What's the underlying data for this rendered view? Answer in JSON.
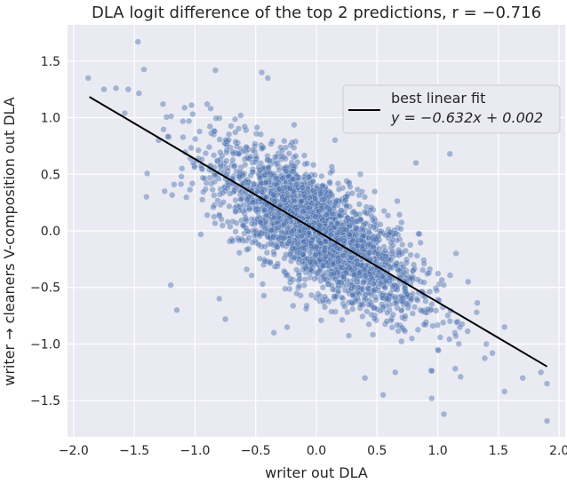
{
  "chart_data": {
    "type": "scatter",
    "title": "DLA logit difference of the top 2 predictions, r = −0.716",
    "xlabel": "writer out DLA",
    "ylabel": "writer → cleaners V-composition out DLA",
    "xlim": [
      -2.05,
      2.05
    ],
    "ylim": [
      -1.82,
      1.82
    ],
    "xticks": [
      -2.0,
      -1.5,
      -1.0,
      -0.5,
      0.0,
      0.5,
      1.0,
      1.5,
      2.0
    ],
    "yticks": [
      -1.5,
      -1.0,
      -0.5,
      0.0,
      0.5,
      1.0,
      1.5
    ],
    "xtick_labels": [
      "−2.0",
      "−1.5",
      "−1.0",
      "−0.5",
      "0.0",
      "0.5",
      "1.0",
      "1.5",
      "2.0"
    ],
    "ytick_labels": [
      "−1.5",
      "−1.0",
      "−0.5",
      "0.0",
      "0.5",
      "1.0",
      "1.5"
    ],
    "grid": true,
    "background_color": "#eaeaf2",
    "point_color": "#4c72b0",
    "line_color": "#000000",
    "fit": {
      "slope": -0.632,
      "intercept": 0.002,
      "x_range": [
        -1.87,
        1.9
      ]
    },
    "legend": {
      "placement": "top-right",
      "title": "best linear fit",
      "equation": "y = −0.632x + 0.002"
    },
    "outliers": [
      {
        "x": -1.47,
        "y": 1.67
      },
      {
        "x": -1.88,
        "y": 1.35
      },
      {
        "x": -1.75,
        "y": 1.25
      },
      {
        "x": -1.65,
        "y": 1.26
      },
      {
        "x": -1.55,
        "y": 1.25
      },
      {
        "x": -1.4,
        "y": 0.3
      },
      {
        "x": -1.3,
        "y": 0.8
      },
      {
        "x": -1.25,
        "y": 0.35
      },
      {
        "x": -1.2,
        "y": -0.48
      },
      {
        "x": -1.15,
        "y": -0.7
      },
      {
        "x": -0.8,
        "y": -0.6
      },
      {
        "x": -0.75,
        "y": -0.78
      },
      {
        "x": -0.45,
        "y": 1.4
      },
      {
        "x": -0.4,
        "y": 1.35
      },
      {
        "x": -0.35,
        "y": -0.9
      },
      {
        "x": 0.4,
        "y": -1.3
      },
      {
        "x": 0.55,
        "y": -1.45
      },
      {
        "x": 0.65,
        "y": -1.25
      },
      {
        "x": 0.82,
        "y": 0.6
      },
      {
        "x": 0.95,
        "y": -1.48
      },
      {
        "x": 1.05,
        "y": -1.62
      },
      {
        "x": 1.15,
        "y": -0.2
      },
      {
        "x": 1.25,
        "y": -0.45
      },
      {
        "x": 1.32,
        "y": -0.72
      },
      {
        "x": 1.4,
        "y": -1.0
      },
      {
        "x": 1.55,
        "y": -1.42
      },
      {
        "x": 1.7,
        "y": -1.3
      },
      {
        "x": 1.85,
        "y": -1.25
      },
      {
        "x": 1.9,
        "y": -1.35
      },
      {
        "x": 1.9,
        "y": -1.68
      },
      {
        "x": 1.55,
        "y": -0.85
      },
      {
        "x": 1.45,
        "y": -1.08
      },
      {
        "x": 0.88,
        "y": 0.95
      },
      {
        "x": -1.05,
        "y": 0.97
      },
      {
        "x": 1.1,
        "y": 0.68
      },
      {
        "x": -0.9,
        "y": 1.12
      }
    ]
  }
}
